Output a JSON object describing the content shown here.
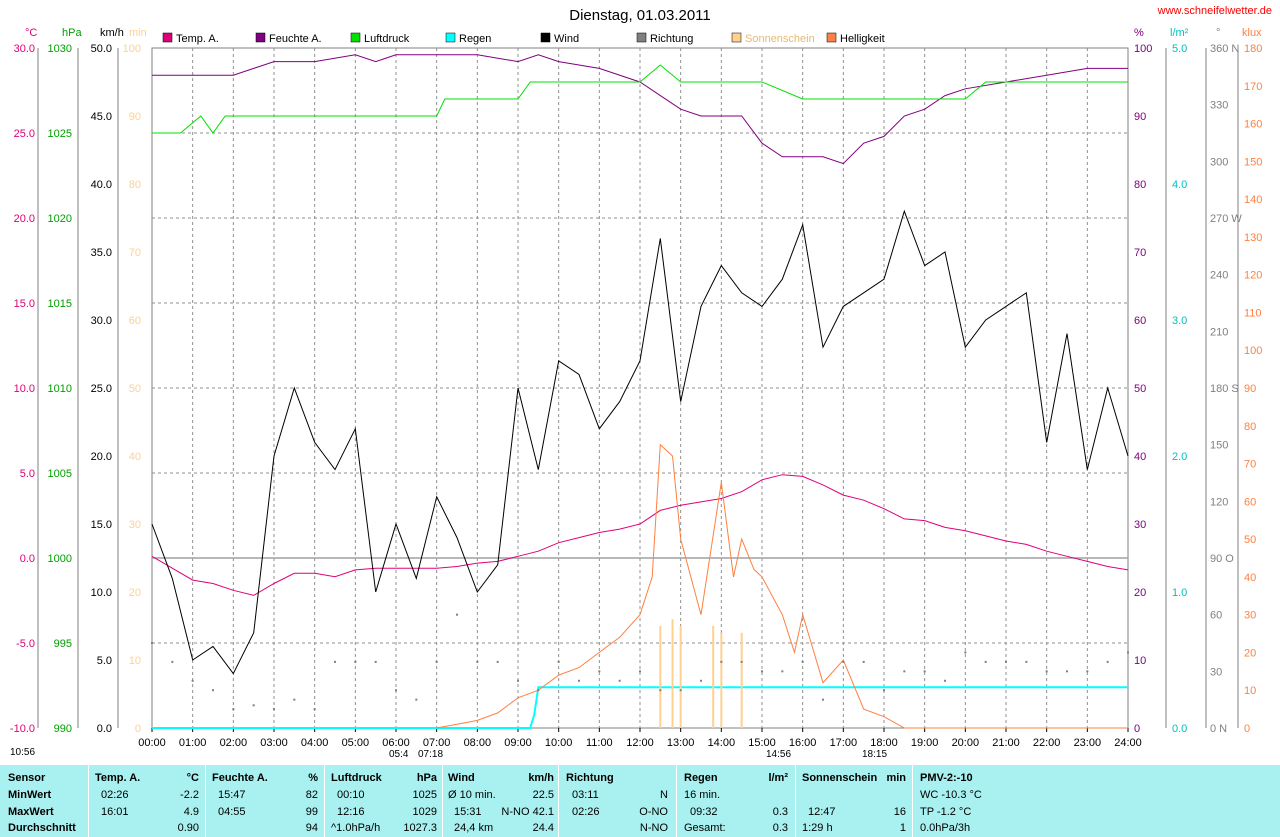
{
  "title": "Dienstag, 01.03.2011",
  "site": "www.schneifelwetter.de",
  "legend": [
    {
      "label": "Temp. A.",
      "color": "#e0007a"
    },
    {
      "label": "Feuchte A.",
      "color": "#800080"
    },
    {
      "label": "Luftdruck",
      "color": "#00e000"
    },
    {
      "label": "Regen",
      "color": "#00ffff"
    },
    {
      "label": "Wind",
      "color": "#000000"
    },
    {
      "label": "Richtung",
      "color": "#808080"
    },
    {
      "label": "Sonnenschein",
      "color": "#ffd090"
    },
    {
      "label": "Helligkeit",
      "color": "#ff8040"
    }
  ],
  "axes_left": [
    {
      "unit": "°C",
      "color": "#e0007a",
      "ticks": [
        "30.0",
        "25.0",
        "20.0",
        "15.0",
        "10.0",
        "5.0",
        "0.0",
        "-5.0",
        "-10.0"
      ]
    },
    {
      "unit": "hPa",
      "color": "#00a000",
      "ticks": [
        "1030",
        "1025",
        "1020",
        "1015",
        "1010",
        "1005",
        "1000",
        "995",
        "990"
      ]
    },
    {
      "unit": "km/h",
      "color": "#000000",
      "ticks": [
        "50.0",
        "45.0",
        "40.0",
        "35.0",
        "30.0",
        "25.0",
        "20.0",
        "15.0",
        "10.0",
        "5.0",
        "0.0"
      ]
    },
    {
      "unit": "min",
      "color": "#ffd090",
      "ticks": [
        "100",
        "90",
        "80",
        "70",
        "60",
        "50",
        "40",
        "30",
        "20",
        "10",
        "0"
      ]
    }
  ],
  "axes_right": [
    {
      "unit": "%",
      "color": "#800080",
      "ticks": [
        "100",
        "90",
        "80",
        "70",
        "60",
        "50",
        "40",
        "30",
        "20",
        "10",
        "0"
      ]
    },
    {
      "unit": "l/m²",
      "color": "#00c0c0",
      "ticks": [
        "5.0",
        "4.0",
        "3.0",
        "2.0",
        "1.0",
        "0.0"
      ]
    },
    {
      "unit": "°",
      "color": "#808080",
      "ticks": [
        "360 N",
        "330",
        "300",
        "270 W",
        "240",
        "210",
        "180 S",
        "150",
        "120",
        "90 O",
        "60",
        "30",
        "0   N"
      ]
    },
    {
      "unit": "klux",
      "color": "#ff8040",
      "ticks": [
        "180",
        "170",
        "160",
        "150",
        "140",
        "130",
        "120",
        "110",
        "100",
        "90",
        "80",
        "70",
        "60",
        "50",
        "40",
        "30",
        "20",
        "10",
        "0"
      ]
    }
  ],
  "x_ticks": [
    "00:00",
    "01:00",
    "02:00",
    "03:00",
    "04:00",
    "05:00",
    "06:00",
    "07:00",
    "08:00",
    "09:00",
    "10:00",
    "11:00",
    "12:00",
    "13:00",
    "14:00",
    "15:00",
    "16:00",
    "17:00",
    "18:00",
    "19:00",
    "20:00",
    "21:00",
    "22:00",
    "23:00",
    "24:00"
  ],
  "sun_marks": {
    "left": "10:56",
    "rise": "05:4",
    "rise2": "07:18",
    "noon": "14:56",
    "set": "18:15"
  },
  "chart_data": {
    "type": "line",
    "title": "Dienstag, 01.03.2011",
    "x_unit": "hours",
    "xlim": [
      0,
      24
    ],
    "series": [
      {
        "name": "Temp. A.",
        "unit": "°C",
        "color": "#e0007a",
        "ylim": [
          -10,
          30
        ],
        "x": [
          0,
          0.5,
          1,
          1.5,
          2,
          2.5,
          3,
          3.5,
          4,
          4.5,
          5,
          5.5,
          6,
          6.5,
          7,
          7.5,
          8,
          8.5,
          9,
          9.5,
          10,
          10.5,
          11,
          11.5,
          12,
          12.5,
          13,
          13.5,
          14,
          14.5,
          15,
          15.5,
          16,
          16.5,
          17,
          17.5,
          18,
          18.5,
          19,
          19.5,
          20,
          20.5,
          21,
          21.5,
          22,
          22.5,
          23,
          23.5,
          24
        ],
        "y": [
          0.1,
          -0.6,
          -1.3,
          -1.5,
          -1.9,
          -2.2,
          -1.5,
          -0.9,
          -0.9,
          -1.1,
          -0.7,
          -0.6,
          -0.6,
          -0.6,
          -0.6,
          -0.5,
          -0.3,
          -0.2,
          0.1,
          0.4,
          0.9,
          1.2,
          1.5,
          1.7,
          2.0,
          2.8,
          3.1,
          3.3,
          3.5,
          3.9,
          4.6,
          4.9,
          4.8,
          4.3,
          3.7,
          3.4,
          2.9,
          2.3,
          2.2,
          1.8,
          1.6,
          1.3,
          1.0,
          0.8,
          0.4,
          0.1,
          -0.2,
          -0.5,
          -0.7
        ]
      },
      {
        "name": "Feuchte A.",
        "unit": "%",
        "color": "#800080",
        "ylim": [
          0,
          100
        ],
        "x": [
          0,
          1,
          2,
          2.5,
          3,
          4,
          5,
          5.5,
          6,
          6.5,
          7,
          8,
          9,
          9.5,
          10,
          11,
          12,
          12.5,
          13,
          13.5,
          14,
          14.5,
          15,
          15.5,
          16,
          16.5,
          17,
          17.5,
          18,
          18.5,
          19,
          19.5,
          20,
          21,
          22,
          23,
          24
        ],
        "y": [
          96,
          96,
          96,
          97,
          98,
          98,
          99,
          98,
          99,
          99,
          99,
          99,
          98,
          99,
          98,
          97,
          95,
          93,
          91,
          90,
          90,
          90,
          86,
          84,
          84,
          84,
          83,
          86,
          87,
          90,
          91,
          93,
          94,
          95,
          96,
          97,
          97
        ]
      },
      {
        "name": "Luftdruck",
        "unit": "hPa",
        "color": "#00e000",
        "ylim": [
          990,
          1030
        ],
        "x": [
          0,
          0.7,
          1.2,
          1.5,
          1.8,
          2,
          3,
          4,
          5,
          6,
          7,
          7.2,
          8,
          9,
          9.3,
          10,
          11,
          12,
          12.5,
          13,
          14,
          15,
          16,
          17,
          18,
          19,
          20,
          20.5,
          21,
          22,
          23,
          24
        ],
        "y": [
          1025,
          1025,
          1026,
          1025,
          1026,
          1026,
          1026,
          1026,
          1026,
          1026,
          1026,
          1027,
          1027,
          1027,
          1028,
          1028,
          1028,
          1028,
          1029,
          1028,
          1028,
          1028,
          1027,
          1027,
          1027,
          1027,
          1027,
          1028,
          1028,
          1028,
          1028,
          1028
        ]
      },
      {
        "name": "Wind",
        "unit": "km/h",
        "color": "#000000",
        "ylim": [
          0,
          50
        ],
        "x": [
          0,
          0.5,
          1,
          1.5,
          2,
          2.5,
          3,
          3.5,
          4,
          4.5,
          5,
          5.5,
          6,
          6.5,
          7,
          7.5,
          8,
          8.5,
          9,
          9.5,
          10,
          10.5,
          11,
          11.5,
          12,
          12.5,
          13,
          13.5,
          14,
          14.5,
          15,
          15.5,
          16,
          16.5,
          17,
          17.5,
          18,
          18.5,
          19,
          19.5,
          20,
          20.5,
          21,
          21.5,
          22,
          22.5,
          23,
          23.5,
          24
        ],
        "y": [
          15,
          11,
          5,
          6,
          4,
          7,
          20,
          25,
          21,
          19,
          22,
          10,
          15,
          11,
          17,
          14,
          10,
          12,
          25,
          19,
          27,
          26,
          22,
          24,
          27,
          36,
          24,
          31,
          34,
          32,
          31,
          33,
          37,
          28,
          31,
          32,
          33,
          38,
          34,
          35,
          28,
          30,
          31,
          32,
          21,
          29,
          19,
          25,
          20
        ]
      },
      {
        "name": "Regen",
        "unit": "l/m²",
        "color": "#00ffff",
        "ylim": [
          0,
          5
        ],
        "x": [
          0,
          9.3,
          9.4,
          9.5,
          24
        ],
        "y": [
          0,
          0,
          0.1,
          0.3,
          0.3
        ]
      },
      {
        "name": "Sonnenschein",
        "unit": "min",
        "color": "#ffd090",
        "ylim": [
          0,
          100
        ],
        "x": [
          12.5,
          12.8,
          13.0,
          13.8,
          14.0,
          14.5
        ],
        "y": [
          15,
          16,
          15,
          15,
          14,
          14
        ]
      },
      {
        "name": "Helligkeit",
        "unit": "klux",
        "color": "#ff8040",
        "ylim": [
          0,
          180
        ],
        "x": [
          7,
          7.5,
          8,
          8.5,
          9,
          9.5,
          10,
          10.5,
          11,
          11.5,
          12,
          12.3,
          12.5,
          12.8,
          13,
          13.5,
          14,
          14.3,
          14.5,
          14.8,
          15,
          15.5,
          15.8,
          16,
          16.5,
          17,
          17.5,
          18,
          18.5,
          19,
          24
        ],
        "y": [
          0,
          1,
          2,
          4,
          8,
          10,
          14,
          16,
          20,
          24,
          30,
          40,
          75,
          72,
          50,
          30,
          65,
          40,
          50,
          42,
          40,
          30,
          20,
          30,
          12,
          18,
          5,
          3,
          0,
          0,
          0
        ]
      },
      {
        "name": "Richtung",
        "unit": "°",
        "color": "#808080",
        "ylim": [
          0,
          360
        ],
        "x": [
          0,
          0.5,
          1,
          1.5,
          2,
          2.5,
          3,
          3.5,
          4,
          4.5,
          5,
          5.5,
          6,
          6.5,
          7,
          7.5,
          8,
          8.5,
          9,
          9.5,
          10,
          10.5,
          11,
          11.5,
          12,
          12.5,
          13,
          13.5,
          14,
          14.5,
          15,
          15.5,
          16,
          16.5,
          17,
          17.5,
          18,
          18.5,
          19,
          19.5,
          20,
          20.5,
          21,
          21.5,
          22,
          22.5,
          23,
          23.5,
          24
        ],
        "y": [
          45,
          35,
          25,
          20,
          10,
          12,
          10,
          15,
          10,
          35,
          35,
          35,
          20,
          15,
          35,
          60,
          35,
          35,
          25,
          20,
          35,
          25,
          30,
          25,
          30,
          20,
          20,
          25,
          35,
          35,
          30,
          30,
          35,
          15,
          35,
          35,
          20,
          30,
          30,
          25,
          40,
          35,
          35,
          35,
          30,
          30,
          30,
          35,
          40
        ]
      }
    ]
  },
  "stats": {
    "sensor": {
      "header": "Sensor",
      "rows": [
        "MinWert",
        "MaxWert",
        "Durchschnitt"
      ]
    },
    "temp": {
      "header": "Temp. A.",
      "unit": "°C",
      "rows": [
        [
          "02:26",
          "-2.2"
        ],
        [
          "16:01",
          "4.9"
        ],
        [
          "",
          "0.90"
        ]
      ]
    },
    "feuchte": {
      "header": "Feuchte A.",
      "unit": "%",
      "rows": [
        [
          "15:47",
          "82"
        ],
        [
          "04:55",
          "99"
        ],
        [
          "",
          "94"
        ]
      ]
    },
    "luftdruck": {
      "header": "Luftdruck",
      "unit": "hPa",
      "rows": [
        [
          "00:10",
          "1025"
        ],
        [
          "12:16",
          "1029"
        ],
        [
          "^1.0hPa/h",
          "1027.3"
        ]
      ]
    },
    "wind": {
      "header": "Wind",
      "unit": "km/h",
      "rows": [
        [
          "Ø 10 min.",
          "22.5"
        ],
        [
          "15:31",
          "N-NO 42.1"
        ],
        [
          "24,4 km",
          "24.4"
        ]
      ]
    },
    "richtung": {
      "header": "Richtung",
      "rows": [
        [
          "03:11",
          "N"
        ],
        [
          "02:26",
          "O-NO"
        ],
        [
          "",
          "N-NO"
        ]
      ]
    },
    "regen": {
      "header": "Regen",
      "unit": "l/m²",
      "rows": [
        [
          "16 min.",
          ""
        ],
        [
          "09:32",
          "0.3"
        ],
        [
          "Gesamt:",
          "0.3"
        ]
      ]
    },
    "sonne": {
      "header": "Sonnenschein",
      "unit": "min",
      "rows": [
        [
          "",
          ""
        ],
        [
          "12:47",
          "16"
        ],
        [
          "1:29 h",
          "1"
        ]
      ]
    },
    "pmv": {
      "header": "PMV-2:-10",
      "rows": [
        "WC -10.3 °C",
        "TP -1.2 °C",
        "0.0hPa/3h"
      ]
    }
  }
}
